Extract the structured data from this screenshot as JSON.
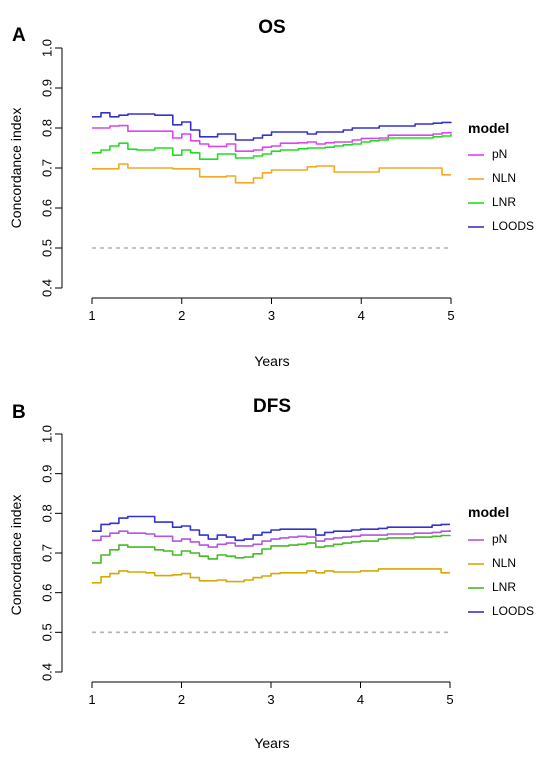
{
  "chart_data": [
    {
      "type": "line",
      "panel_label": "A",
      "title": "OS",
      "xlabel": "Years",
      "ylabel": "Concordance index",
      "xlim": [
        1,
        5
      ],
      "ylim": [
        0.4,
        1.0
      ],
      "x_ticks": [
        "1",
        "2",
        "3",
        "4",
        "5"
      ],
      "y_ticks": [
        "0.4",
        "0.5",
        "0.6",
        "0.7",
        "0.8",
        "0.9",
        "1.0"
      ],
      "reference_line": {
        "y": 0.5,
        "style": "dashed",
        "color": "#b4b4b4"
      },
      "legend": {
        "title": "model",
        "position": "right"
      },
      "x": [
        1.0,
        1.1,
        1.2,
        1.3,
        1.4,
        1.5,
        1.6,
        1.7,
        1.8,
        1.9,
        2.0,
        2.1,
        2.2,
        2.3,
        2.4,
        2.5,
        2.6,
        2.7,
        2.8,
        2.9,
        3.0,
        3.1,
        3.2,
        3.3,
        3.4,
        3.5,
        3.6,
        3.7,
        3.8,
        3.9,
        4.0,
        4.1,
        4.2,
        4.3,
        4.4,
        4.5,
        4.6,
        4.7,
        4.8,
        4.9,
        5.0
      ],
      "series": [
        {
          "name": "pN",
          "color": "#d946ef",
          "values": [
            0.8,
            0.8,
            0.805,
            0.806,
            0.792,
            0.792,
            0.792,
            0.792,
            0.792,
            0.775,
            0.785,
            0.768,
            0.76,
            0.754,
            0.754,
            0.76,
            0.742,
            0.742,
            0.745,
            0.752,
            0.755,
            0.762,
            0.762,
            0.763,
            0.765,
            0.76,
            0.763,
            0.765,
            0.765,
            0.77,
            0.774,
            0.774,
            0.775,
            0.782,
            0.782,
            0.782,
            0.782,
            0.782,
            0.785,
            0.788,
            0.79
          ]
        },
        {
          "name": "NLN",
          "color": "#f5a623",
          "values": [
            0.698,
            0.698,
            0.698,
            0.71,
            0.7,
            0.7,
            0.7,
            0.7,
            0.7,
            0.698,
            0.698,
            0.698,
            0.678,
            0.678,
            0.678,
            0.68,
            0.663,
            0.663,
            0.675,
            0.688,
            0.695,
            0.695,
            0.695,
            0.695,
            0.703,
            0.705,
            0.705,
            0.69,
            0.69,
            0.69,
            0.69,
            0.69,
            0.7,
            0.7,
            0.7,
            0.7,
            0.7,
            0.7,
            0.7,
            0.683,
            0.683
          ]
        },
        {
          "name": "LNR",
          "color": "#22dd22",
          "values": [
            0.738,
            0.745,
            0.755,
            0.762,
            0.747,
            0.745,
            0.745,
            0.75,
            0.75,
            0.732,
            0.745,
            0.738,
            0.722,
            0.722,
            0.735,
            0.735,
            0.725,
            0.725,
            0.73,
            0.735,
            0.742,
            0.745,
            0.745,
            0.748,
            0.75,
            0.75,
            0.752,
            0.755,
            0.758,
            0.76,
            0.765,
            0.768,
            0.77,
            0.775,
            0.775,
            0.775,
            0.775,
            0.775,
            0.778,
            0.78,
            0.785
          ]
        },
        {
          "name": "LOODS",
          "color": "#3333cc",
          "values": [
            0.828,
            0.838,
            0.828,
            0.832,
            0.835,
            0.835,
            0.835,
            0.832,
            0.832,
            0.808,
            0.815,
            0.795,
            0.778,
            0.778,
            0.785,
            0.785,
            0.77,
            0.77,
            0.775,
            0.782,
            0.79,
            0.79,
            0.79,
            0.79,
            0.785,
            0.79,
            0.79,
            0.79,
            0.795,
            0.8,
            0.8,
            0.8,
            0.805,
            0.805,
            0.805,
            0.805,
            0.81,
            0.81,
            0.812,
            0.814,
            0.815
          ]
        }
      ]
    },
    {
      "type": "line",
      "panel_label": "B",
      "title": "DFS",
      "xlabel": "Years",
      "ylabel": "Concordance index",
      "xlim": [
        1,
        5
      ],
      "ylim": [
        0.4,
        1.0
      ],
      "x_ticks": [
        "1",
        "2",
        "3",
        "4",
        "5"
      ],
      "y_ticks": [
        "0.4",
        "0.5",
        "0.6",
        "0.7",
        "0.8",
        "0.9",
        "1.0"
      ],
      "reference_line": {
        "y": 0.5,
        "style": "dashed",
        "color": "#b4b4b4"
      },
      "legend": {
        "title": "model",
        "position": "right"
      },
      "x": [
        1.0,
        1.1,
        1.2,
        1.3,
        1.4,
        1.5,
        1.6,
        1.7,
        1.8,
        1.9,
        2.0,
        2.1,
        2.2,
        2.3,
        2.4,
        2.5,
        2.6,
        2.7,
        2.8,
        2.9,
        3.0,
        3.1,
        3.2,
        3.3,
        3.4,
        3.5,
        3.6,
        3.7,
        3.8,
        3.9,
        4.0,
        4.1,
        4.2,
        4.3,
        4.4,
        4.5,
        4.6,
        4.7,
        4.8,
        4.9,
        5.0
      ],
      "series": [
        {
          "name": "pN",
          "color": "#b455e0",
          "values": [
            0.732,
            0.742,
            0.75,
            0.755,
            0.75,
            0.75,
            0.748,
            0.742,
            0.742,
            0.73,
            0.735,
            0.728,
            0.72,
            0.715,
            0.722,
            0.725,
            0.718,
            0.718,
            0.722,
            0.73,
            0.735,
            0.738,
            0.74,
            0.742,
            0.74,
            0.73,
            0.735,
            0.738,
            0.74,
            0.742,
            0.745,
            0.745,
            0.745,
            0.748,
            0.748,
            0.748,
            0.75,
            0.75,
            0.752,
            0.755,
            0.758
          ]
        },
        {
          "name": "NLN",
          "color": "#d4aa00",
          "values": [
            0.625,
            0.64,
            0.648,
            0.655,
            0.652,
            0.652,
            0.65,
            0.643,
            0.643,
            0.645,
            0.648,
            0.638,
            0.63,
            0.63,
            0.632,
            0.628,
            0.628,
            0.632,
            0.638,
            0.642,
            0.648,
            0.65,
            0.65,
            0.65,
            0.655,
            0.65,
            0.655,
            0.652,
            0.652,
            0.652,
            0.655,
            0.655,
            0.66,
            0.66,
            0.66,
            0.66,
            0.66,
            0.66,
            0.66,
            0.65,
            0.65
          ]
        },
        {
          "name": "LNR",
          "color": "#44bb22",
          "values": [
            0.675,
            0.695,
            0.708,
            0.72,
            0.715,
            0.715,
            0.715,
            0.708,
            0.705,
            0.695,
            0.705,
            0.7,
            0.692,
            0.685,
            0.695,
            0.692,
            0.688,
            0.69,
            0.698,
            0.71,
            0.718,
            0.718,
            0.72,
            0.722,
            0.725,
            0.715,
            0.718,
            0.722,
            0.725,
            0.728,
            0.73,
            0.73,
            0.735,
            0.738,
            0.738,
            0.738,
            0.74,
            0.74,
            0.742,
            0.744,
            0.745
          ]
        },
        {
          "name": "LOODS",
          "color": "#3333cc",
          "values": [
            0.755,
            0.772,
            0.775,
            0.788,
            0.792,
            0.792,
            0.792,
            0.778,
            0.778,
            0.765,
            0.768,
            0.758,
            0.745,
            0.735,
            0.745,
            0.74,
            0.732,
            0.735,
            0.745,
            0.752,
            0.758,
            0.76,
            0.76,
            0.76,
            0.76,
            0.745,
            0.752,
            0.755,
            0.755,
            0.758,
            0.76,
            0.76,
            0.762,
            0.765,
            0.765,
            0.765,
            0.765,
            0.765,
            0.77,
            0.772,
            0.772
          ]
        }
      ]
    }
  ]
}
